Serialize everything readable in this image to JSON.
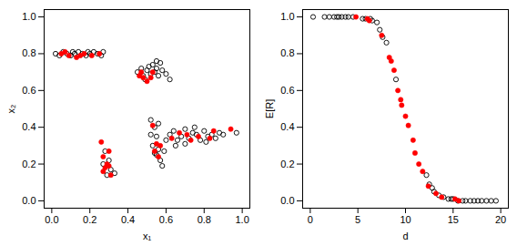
{
  "chart_data": [
    {
      "type": "scatter",
      "x_label": "x₁",
      "y_label": "x₂",
      "xlim": [
        -0.04,
        1.04
      ],
      "ylim": [
        -0.04,
        1.04
      ],
      "xticks": [
        {
          "value": 0,
          "label": "0.0"
        },
        {
          "value": 0.2,
          "label": "0.2"
        },
        {
          "value": 0.4,
          "label": "0.4"
        },
        {
          "value": 0.6,
          "label": "0.6"
        },
        {
          "value": 0.8,
          "label": "0.8"
        },
        {
          "value": 1,
          "label": "1.0"
        }
      ],
      "yticks": [
        {
          "value": 0,
          "label": "0.0"
        },
        {
          "value": 0.2,
          "label": "0.2"
        },
        {
          "value": 0.4,
          "label": "0.4"
        },
        {
          "value": 0.6,
          "label": "0.6"
        },
        {
          "value": 0.8,
          "label": "0.8"
        },
        {
          "value": 1,
          "label": "1.0"
        }
      ],
      "grid": false,
      "series": [
        {
          "color": "black",
          "marker": "open circle",
          "x": [
            0.02,
            0.04,
            0.06,
            0.08,
            0.1,
            0.12,
            0.14,
            0.16,
            0.18,
            0.2,
            0.22,
            0.24,
            0.26,
            0.27,
            0.19,
            0.11,
            0.45,
            0.47,
            0.48,
            0.5,
            0.51,
            0.52,
            0.53,
            0.54,
            0.55,
            0.56,
            0.57,
            0.58,
            0.6,
            0.62,
            0.49,
            0.55,
            0.28,
            0.3,
            0.31,
            0.29,
            0.33,
            0.27,
            0.52,
            0.54,
            0.55,
            0.53,
            0.56,
            0.55,
            0.57,
            0.58,
            0.59,
            0.6,
            0.52,
            0.56,
            0.54,
            0.62,
            0.64,
            0.66,
            0.68,
            0.7,
            0.72,
            0.74,
            0.76,
            0.78,
            0.8,
            0.82,
            0.84,
            0.86,
            0.88,
            0.9,
            0.97,
            0.65,
            0.7,
            0.75,
            0.81
          ],
          "y": [
            0.8,
            0.79,
            0.81,
            0.8,
            0.79,
            0.8,
            0.81,
            0.8,
            0.79,
            0.8,
            0.81,
            0.8,
            0.79,
            0.81,
            0.81,
            0.81,
            0.7,
            0.72,
            0.68,
            0.71,
            0.73,
            0.69,
            0.74,
            0.7,
            0.72,
            0.68,
            0.75,
            0.71,
            0.69,
            0.66,
            0.66,
            0.76,
            0.27,
            0.22,
            0.17,
            0.14,
            0.15,
            0.2,
            0.44,
            0.4,
            0.35,
            0.3,
            0.28,
            0.25,
            0.22,
            0.19,
            0.27,
            0.33,
            0.36,
            0.42,
            0.26,
            0.36,
            0.38,
            0.33,
            0.35,
            0.39,
            0.34,
            0.37,
            0.36,
            0.33,
            0.38,
            0.35,
            0.36,
            0.34,
            0.37,
            0.36,
            0.37,
            0.3,
            0.31,
            0.4,
            0.32
          ]
        },
        {
          "color": "red",
          "marker": "filled circle",
          "x": [
            0.05,
            0.07,
            0.09,
            0.13,
            0.15,
            0.17,
            0.21,
            0.25,
            0.46,
            0.48,
            0.5,
            0.52,
            0.53,
            0.47,
            0.26,
            0.27,
            0.28,
            0.29,
            0.3,
            0.31,
            0.27,
            0.3,
            0.53,
            0.55,
            0.54,
            0.57,
            0.56,
            0.63,
            0.67,
            0.71,
            0.73,
            0.77,
            0.83,
            0.85,
            0.94
          ],
          "y": [
            0.8,
            0.81,
            0.79,
            0.78,
            0.79,
            0.8,
            0.79,
            0.8,
            0.68,
            0.67,
            0.65,
            0.67,
            0.7,
            0.7,
            0.32,
            0.24,
            0.18,
            0.2,
            0.19,
            0.14,
            0.16,
            0.27,
            0.41,
            0.31,
            0.27,
            0.3,
            0.24,
            0.34,
            0.37,
            0.36,
            0.33,
            0.35,
            0.34,
            0.38,
            0.39
          ]
        }
      ]
    },
    {
      "type": "scatter",
      "x_label": "d",
      "y_label": "E[R]",
      "xlim": [
        -0.8,
        20.8
      ],
      "ylim": [
        -0.04,
        1.04
      ],
      "xticks": [
        0,
        5,
        10,
        15,
        20
      ],
      "yticks": [
        {
          "value": 0,
          "label": "0.0"
        },
        {
          "value": 0.2,
          "label": "0.2"
        },
        {
          "value": 0.4,
          "label": "0.4"
        },
        {
          "value": 0.6,
          "label": "0.6"
        },
        {
          "value": 0.8,
          "label": "0.8"
        },
        {
          "value": 1,
          "label": "1.0"
        }
      ],
      "grid": false,
      "series": [
        {
          "color": "black",
          "marker": "open circle",
          "x": [
            0.3,
            1.5,
            2.0,
            2.5,
            2.8,
            3.0,
            3.3,
            3.7,
            4.0,
            4.5,
            5.5,
            5.8,
            6.3,
            6.5,
            7.0,
            7.3,
            7.6,
            8.0,
            9.0,
            12.2,
            12.5,
            12.8,
            13.0,
            13.5,
            14.0,
            14.5,
            14.8,
            15.0,
            15.5,
            16.0,
            16.3,
            16.8,
            17.2,
            17.6,
            18.0,
            18.5,
            19.0,
            19.5
          ],
          "y": [
            1.0,
            1.0,
            1.0,
            1.0,
            1.0,
            1.0,
            1.0,
            1.0,
            1.0,
            1.0,
            0.99,
            0.99,
            0.99,
            0.98,
            0.97,
            0.93,
            0.89,
            0.86,
            0.66,
            0.14,
            0.09,
            0.07,
            0.05,
            0.03,
            0.02,
            0.01,
            0.01,
            0.01,
            0.0,
            0.0,
            0.0,
            0.0,
            0.0,
            0.0,
            0.0,
            0.0,
            0.0,
            0.0
          ]
        },
        {
          "color": "red",
          "marker": "filled circle",
          "x": [
            4.8,
            6.0,
            6.2,
            7.5,
            8.3,
            8.5,
            8.8,
            9.2,
            9.5,
            9.6,
            10.0,
            10.3,
            10.8,
            11.0,
            11.4,
            11.8,
            12.4,
            13.2,
            13.8,
            15.2,
            15.6
          ],
          "y": [
            1.0,
            0.99,
            0.98,
            0.9,
            0.78,
            0.76,
            0.71,
            0.6,
            0.55,
            0.52,
            0.46,
            0.41,
            0.33,
            0.26,
            0.2,
            0.16,
            0.08,
            0.04,
            0.02,
            0.01,
            0.0
          ]
        }
      ]
    }
  ]
}
